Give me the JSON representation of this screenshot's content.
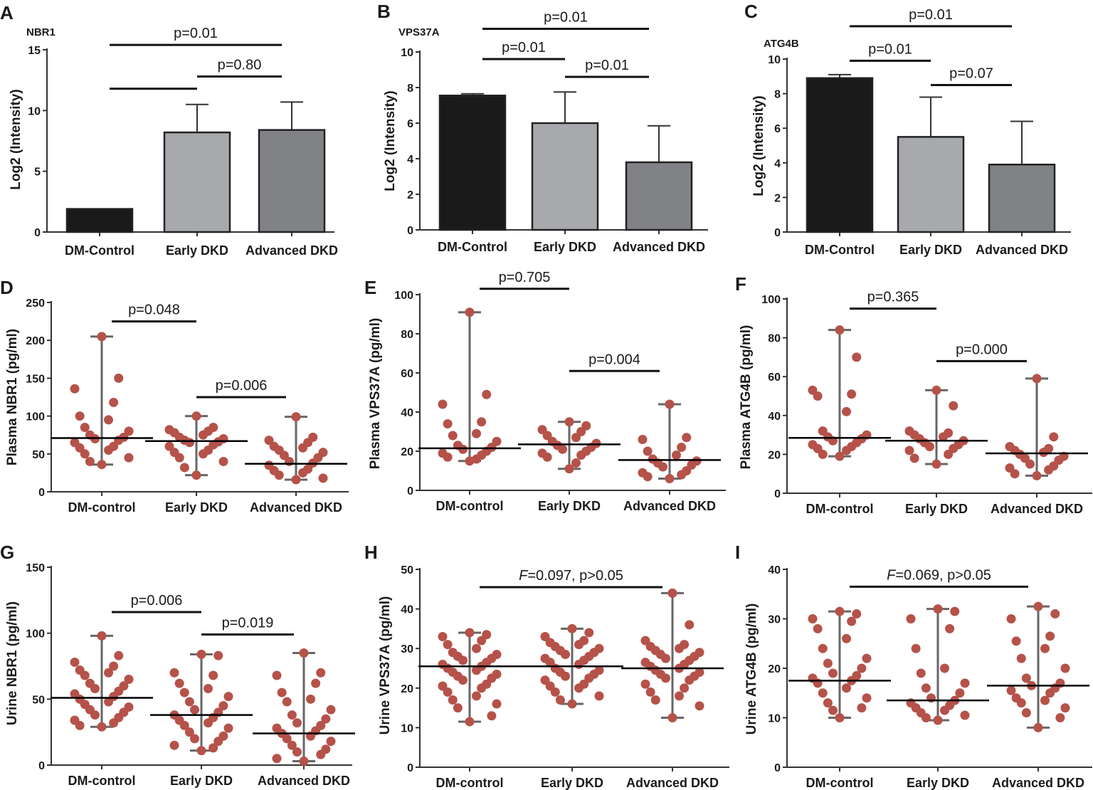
{
  "figure": {
    "colors": {
      "point": "#b5524a",
      "whisker": "#666666",
      "median": "#000000",
      "bar_fills": [
        "#1a1a1a",
        "#a7a9ac",
        "#808285"
      ]
    }
  },
  "chart_data": [
    {
      "id": "A",
      "type": "bar",
      "title": "NBR1",
      "ylabel": "Log2 (Intensity)",
      "categories": [
        "DM-Control",
        "Early DKD",
        "Advanced DKD"
      ],
      "values": [
        1.9,
        8.2,
        8.4
      ],
      "errors": [
        0,
        2.3,
        2.3
      ],
      "ylim": [
        0,
        15
      ],
      "yticks": [
        0,
        5,
        10,
        15
      ],
      "annotations": [
        {
          "text": "p=0.01",
          "from": 0,
          "to": 2,
          "y": 15.4
        },
        {
          "text": "",
          "from": 0,
          "to": 1,
          "y": 11.8
        },
        {
          "text": "p=0.80",
          "from": 1,
          "to": 2,
          "y": 12.8
        }
      ]
    },
    {
      "id": "B",
      "type": "bar",
      "title": "VPS37A",
      "ylabel": "Log2 (Intensity)",
      "categories": [
        "DM-Control",
        "Early DKD",
        "Advanced DKD"
      ],
      "values": [
        7.55,
        6.0,
        3.8
      ],
      "errors": [
        0.1,
        1.75,
        2.05
      ],
      "ylim": [
        0,
        10
      ],
      "yticks": [
        0,
        2,
        4,
        6,
        8,
        10
      ],
      "annotations": [
        {
          "text": "p=0.01",
          "from": 0,
          "to": 2,
          "y": 11.3
        },
        {
          "text": "p=0.01",
          "from": 0,
          "to": 1,
          "y": 9.6
        },
        {
          "text": "p=0.01",
          "from": 1,
          "to": 2,
          "y": 8.6
        }
      ]
    },
    {
      "id": "C",
      "type": "bar",
      "title": "ATG4B",
      "ylabel": "Log2 (Intensity)",
      "categories": [
        "DM-Control",
        "Early DKD",
        "Advanced DKD"
      ],
      "values": [
        8.9,
        5.5,
        3.9
      ],
      "errors": [
        0.2,
        2.3,
        2.5
      ],
      "ylim": [
        0,
        10
      ],
      "yticks": [
        0,
        2,
        4,
        6,
        8,
        10
      ],
      "annotations": [
        {
          "text": "p=0.01",
          "from": 0,
          "to": 2,
          "y": 11.9
        },
        {
          "text": "p=0.01",
          "from": 0,
          "to": 1,
          "y": 9.9
        },
        {
          "text": "p=0.07",
          "from": 1,
          "to": 2,
          "y": 8.5
        }
      ]
    },
    {
      "id": "D",
      "type": "scatter",
      "ylabel": "Plasma NBR1 (pg/ml)",
      "categories": [
        "DM-control",
        "Early DKD",
        "Advanced DKD"
      ],
      "ylim": [
        0,
        250
      ],
      "yticks": [
        0,
        50,
        100,
        150,
        200,
        250
      ],
      "groups": [
        {
          "median": 71,
          "min": 36,
          "max": 205,
          "points": [
            205,
            150,
            136,
            118,
            100,
            95,
            85,
            80,
            75,
            72,
            70,
            68,
            65,
            60,
            58,
            55,
            50,
            45,
            40,
            36
          ]
        },
        {
          "median": 67,
          "min": 22,
          "max": 100,
          "points": [
            100,
            85,
            82,
            80,
            78,
            75,
            72,
            70,
            68,
            66,
            65,
            62,
            60,
            55,
            52,
            50,
            45,
            40,
            32,
            22
          ]
        },
        {
          "median": 37,
          "min": 16,
          "max": 99,
          "points": [
            99,
            72,
            68,
            65,
            60,
            58,
            55,
            52,
            48,
            45,
            40,
            38,
            35,
            30,
            28,
            25,
            22,
            18,
            16
          ]
        }
      ],
      "annotations": [
        {
          "text": "p=0.048",
          "from": 0,
          "to": 1,
          "y": 225
        },
        {
          "text": "p=0.006",
          "from": 1,
          "to": 2,
          "y": 125
        }
      ]
    },
    {
      "id": "E",
      "type": "scatter",
      "ylabel": "Plasma VPS37A (pg/ml)",
      "categories": [
        "DM-control",
        "Early DKD",
        "Advanced DKD"
      ],
      "ylim": [
        0,
        100
      ],
      "yticks": [
        0,
        20,
        40,
        60,
        80,
        100
      ],
      "groups": [
        {
          "median": 21.5,
          "min": 15,
          "max": 91,
          "points": [
            91,
            49,
            44,
            35,
            34,
            29,
            28,
            25,
            23,
            22,
            21,
            20,
            19,
            18,
            17,
            16,
            15
          ]
        },
        {
          "median": 23.5,
          "min": 11,
          "max": 35,
          "points": [
            35,
            33,
            31,
            30,
            28,
            27,
            25,
            24,
            23,
            22,
            21,
            20,
            19,
            18,
            17,
            14,
            11
          ]
        },
        {
          "median": 15.5,
          "min": 6,
          "max": 44,
          "points": [
            44,
            27,
            26,
            22,
            20,
            18,
            16,
            15,
            14,
            13,
            12,
            10,
            9,
            8,
            7,
            6
          ]
        }
      ],
      "annotations": [
        {
          "text": "p=0.705",
          "from": 0,
          "to": 1,
          "y": 103
        },
        {
          "text": "p=0.004",
          "from": 1,
          "to": 2,
          "y": 61
        }
      ]
    },
    {
      "id": "F",
      "type": "scatter",
      "ylabel": "Plasma ATG4B (pg/ml)",
      "categories": [
        "DM-control",
        "Early DKD",
        "Advanced DKD"
      ],
      "ylim": [
        0,
        100
      ],
      "yticks": [
        0,
        20,
        40,
        60,
        80,
        100
      ],
      "groups": [
        {
          "median": 28.5,
          "min": 19,
          "max": 84,
          "points": [
            84,
            70,
            53,
            51,
            50,
            42,
            32,
            30,
            29,
            28,
            27,
            26,
            25,
            24,
            23,
            22,
            20,
            19
          ]
        },
        {
          "median": 27,
          "min": 15,
          "max": 53,
          "points": [
            53,
            45,
            32,
            31,
            30,
            29,
            28,
            27,
            26,
            25,
            24,
            23,
            22,
            20,
            18,
            15
          ]
        },
        {
          "median": 20.5,
          "min": 9,
          "max": 59,
          "points": [
            59,
            29,
            24,
            23,
            22,
            21,
            20,
            19,
            18,
            17,
            15,
            14,
            13,
            12,
            10,
            9
          ]
        }
      ],
      "annotations": [
        {
          "text": "p=0.365",
          "from": 0,
          "to": 1,
          "y": 95
        },
        {
          "text": "p=0.000",
          "from": 1,
          "to": 2,
          "y": 68
        }
      ]
    },
    {
      "id": "G",
      "type": "scatter",
      "ylabel": "Urine NBR1 (pg/ml)",
      "categories": [
        "DM-control",
        "Early DKD",
        "Advanced DKD"
      ],
      "ylim": [
        0,
        150
      ],
      "yticks": [
        0,
        50,
        100,
        150
      ],
      "groups": [
        {
          "median": 51,
          "min": 29,
          "max": 98,
          "points": [
            98,
            83,
            78,
            75,
            72,
            70,
            68,
            65,
            62,
            60,
            58,
            56,
            54,
            52,
            50,
            48,
            46,
            44,
            42,
            40,
            38,
            36,
            34,
            32,
            30,
            29
          ]
        },
        {
          "median": 38,
          "min": 11,
          "max": 84,
          "points": [
            84,
            83,
            70,
            68,
            62,
            58,
            55,
            52,
            48,
            45,
            42,
            40,
            38,
            36,
            34,
            32,
            30,
            28,
            25,
            22,
            20,
            18,
            15,
            13,
            11
          ]
        },
        {
          "median": 24,
          "min": 3,
          "max": 85,
          "points": [
            85,
            70,
            68,
            62,
            55,
            50,
            48,
            42,
            38,
            35,
            32,
            30,
            28,
            26,
            24,
            22,
            20,
            18,
            15,
            12,
            10,
            8,
            5,
            3
          ]
        }
      ],
      "annotations": [
        {
          "text": "p=0.006",
          "from": 0,
          "to": 1,
          "y": 116
        },
        {
          "text": "p=0.019",
          "from": 1,
          "to": 2,
          "y": 99
        }
      ]
    },
    {
      "id": "H",
      "type": "scatter",
      "ylabel": "Urine VPS37A (pg/ml)",
      "categories": [
        "DM-control",
        "Early DKD",
        "Advanced DKD"
      ],
      "ylim": [
        0,
        50
      ],
      "yticks": [
        0,
        10,
        20,
        30,
        40,
        50
      ],
      "groups": [
        {
          "median": 25.5,
          "min": 11.5,
          "max": 34,
          "points": [
            34,
            33.5,
            33,
            32,
            31,
            30,
            29,
            28.5,
            28,
            27.5,
            27,
            26.5,
            26,
            25.5,
            25,
            24.5,
            24,
            23.5,
            23,
            22.5,
            22,
            21,
            20.5,
            20,
            19,
            18,
            17,
            16,
            15,
            13,
            11.5
          ]
        },
        {
          "median": 25.5,
          "min": 16,
          "max": 35,
          "points": [
            35,
            34,
            33,
            32,
            31.5,
            31,
            30.5,
            30,
            29.5,
            29,
            28.5,
            28,
            27.5,
            27,
            26.5,
            26,
            25,
            24.5,
            24,
            23.5,
            23,
            22.5,
            22,
            21,
            20.5,
            20,
            19,
            18,
            17,
            16
          ]
        },
        {
          "median": 25,
          "min": 12.5,
          "max": 44,
          "points": [
            44,
            36,
            32,
            31,
            30.5,
            30,
            29.5,
            29,
            28.5,
            28,
            27.5,
            27,
            26.5,
            26,
            25.5,
            25,
            24.5,
            24,
            23.5,
            23,
            22.5,
            22,
            21,
            20,
            19,
            18,
            17,
            15.5,
            12.5
          ]
        }
      ],
      "annotation_prefix": "F",
      "annotations": [
        {
          "text": "=0.097, p>0.05",
          "from": 0,
          "to": 2,
          "y": 45.5
        }
      ]
    },
    {
      "id": "I",
      "type": "scatter",
      "ylabel": "Urine ATG4B (pg/ml)",
      "categories": [
        "DM-control",
        "Early DKD",
        "Advanced DKD"
      ],
      "ylim": [
        0,
        40
      ],
      "yticks": [
        0,
        10,
        20,
        30,
        40
      ],
      "groups": [
        {
          "median": 17.5,
          "min": 10,
          "max": 31.5,
          "points": [
            31.5,
            31,
            30,
            29.5,
            28,
            26,
            24,
            22,
            21,
            20,
            19,
            18.5,
            18,
            17.5,
            17,
            16,
            15,
            14,
            13,
            12,
            11.5,
            10
          ]
        },
        {
          "median": 13.5,
          "min": 9.5,
          "max": 32,
          "points": [
            32,
            31.5,
            30,
            28,
            24,
            20,
            19,
            17,
            16,
            15,
            14,
            13.5,
            13,
            12.5,
            12,
            11.5,
            11,
            10.5,
            10,
            9.5
          ]
        },
        {
          "median": 16.5,
          "min": 8,
          "max": 32.5,
          "points": [
            32.5,
            31,
            30,
            26.5,
            25.5,
            24,
            22,
            20,
            18,
            17,
            16.5,
            16,
            15.5,
            15,
            14,
            13.5,
            13,
            12,
            11,
            10,
            8
          ]
        }
      ],
      "annotation_prefix": "F",
      "annotations": [
        {
          "text": "=0.069, p>0.05",
          "from": 0,
          "to": 2,
          "y": 36.5
        }
      ]
    }
  ]
}
